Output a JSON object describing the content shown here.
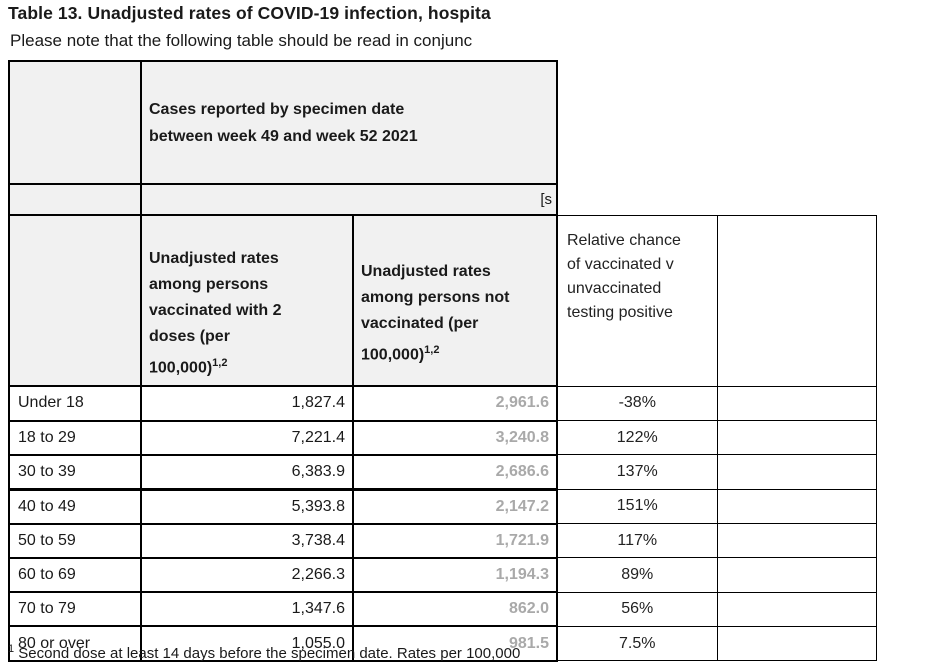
{
  "page": {
    "title": "Table 13. Unadjusted rates of COVID-19 infection, hospita",
    "subtitle": "Please note that the following table should be read in conjunc",
    "footnote": {
      "sup": "1",
      "text": " Second dose at least 14 days before the specimen date. Rates per 100,000"
    }
  },
  "table": {
    "top_header": {
      "cases_label": "Cases reported by specimen date\nbetween week 49 and week 52 2021",
      "clipped_note": "[s"
    },
    "columns": {
      "vaccinated": {
        "label": "Unadjusted rates\namong persons\nvaccinated with 2\ndoses (per\n100,000)",
        "sup": "1,2"
      },
      "unvaccinated": {
        "label": "Unadjusted rates\namong persons not\nvaccinated (per\n100,000)",
        "sup": "1,2"
      },
      "relative": {
        "label": "Relative chance\nof vaccinated v\nunvaccinated\ntesting positive"
      }
    },
    "rows": [
      {
        "age": "Under 18",
        "vaccinated": "1,827.4",
        "unvaccinated": "2,961.6",
        "relative": "-38%"
      },
      {
        "age": "18 to 29",
        "vaccinated": "7,221.4",
        "unvaccinated": "3,240.8",
        "relative": "122%"
      },
      {
        "age": "30 to 39",
        "vaccinated": "6,383.9",
        "unvaccinated": "2,686.6",
        "relative": "137%"
      },
      {
        "age": "40 to 49",
        "vaccinated": "5,393.8",
        "unvaccinated": "2,147.2",
        "relative": "151%"
      },
      {
        "age": "50 to 59",
        "vaccinated": "3,738.4",
        "unvaccinated": "1,721.9",
        "relative": "117%"
      },
      {
        "age": "60 to 69",
        "vaccinated": "2,266.3",
        "unvaccinated": "1,194.3",
        "relative": "89%"
      },
      {
        "age": "70 to 79",
        "vaccinated": "1,347.6",
        "unvaccinated": "862.0",
        "relative": "56%"
      },
      {
        "age": "80 or over",
        "vaccinated": "1,055.0",
        "unvaccinated": "981.5",
        "relative": "7.5%"
      }
    ]
  },
  "colors": {
    "header_bg": "#f1f1f1",
    "border": "#000000",
    "muted_value": "#a9a9a9",
    "text": "#1a1a1a"
  }
}
